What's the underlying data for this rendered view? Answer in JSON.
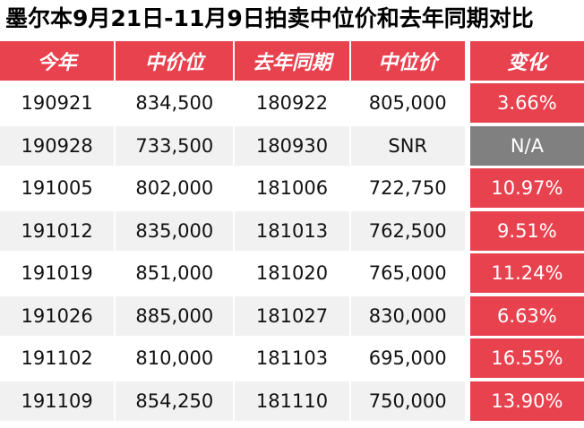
{
  "title": "墨尔本9月21日-11月9日拍卖中位价和去年同期对比",
  "colors": {
    "header_bg": "#e8424f",
    "change_bg": "#e8424f",
    "na_bg": "#808080",
    "alt_row_bg": "#f1f1f1"
  },
  "chart_data": {
    "type": "table",
    "columns": [
      "今年",
      "中价位",
      "去年同期",
      "中位价",
      "变化"
    ],
    "rows": [
      [
        "190921",
        "834,500",
        "180922",
        "805,000",
        "3.66%"
      ],
      [
        "190928",
        "733,500",
        "180930",
        "SNR",
        "N/A"
      ],
      [
        "191005",
        "802,000",
        "181006",
        "722,750",
        "10.97%"
      ],
      [
        "191012",
        "835,000",
        "181013",
        "762,500",
        "9.51%"
      ],
      [
        "191019",
        "851,000",
        "181020",
        "765,000",
        "11.24%"
      ],
      [
        "191026",
        "885,000",
        "181027",
        "830,000",
        "6.63%"
      ],
      [
        "191102",
        "810,000",
        "181103",
        "695,000",
        "16.55%"
      ],
      [
        "191109",
        "854,250",
        "181110",
        "750,000",
        "13.90%"
      ]
    ]
  }
}
